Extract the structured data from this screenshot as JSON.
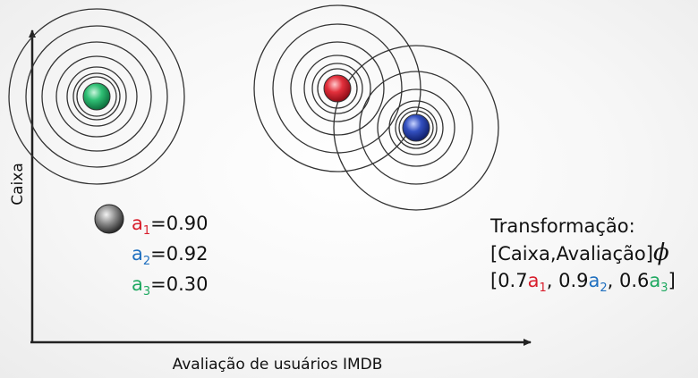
{
  "axes": {
    "x_label": "Avaliação de usuários IMDB",
    "y_label": "Caixa"
  },
  "weights": [
    {
      "symbol": "a",
      "index": "1",
      "value": "=0.90",
      "color": "#d81e2c"
    },
    {
      "symbol": "a",
      "index": "2",
      "value": "=0.92",
      "color": "#1f6fbf"
    },
    {
      "symbol": "a",
      "index": "3",
      "value": "=0.30",
      "color": "#1ea860"
    }
  ],
  "transformation": {
    "title": "Transformação:",
    "mapping": "[Caixa,Avaliação]",
    "phi": "ϕ",
    "vector": {
      "open": "[0.7",
      "a1": "a",
      "i1": "1",
      "sep1": ", 0.9",
      "a2": "a",
      "i2": "2",
      "sep2": ", 0.6",
      "a3": "a",
      "i3": "3",
      "close": "]"
    }
  },
  "nodes": [
    {
      "name": "green-node",
      "color": "#1ea860"
    },
    {
      "name": "red-node",
      "color": "#d81e2c"
    },
    {
      "name": "blue-node",
      "color": "#1f3fa8"
    },
    {
      "name": "gray-query-node",
      "color": "#555555"
    }
  ]
}
